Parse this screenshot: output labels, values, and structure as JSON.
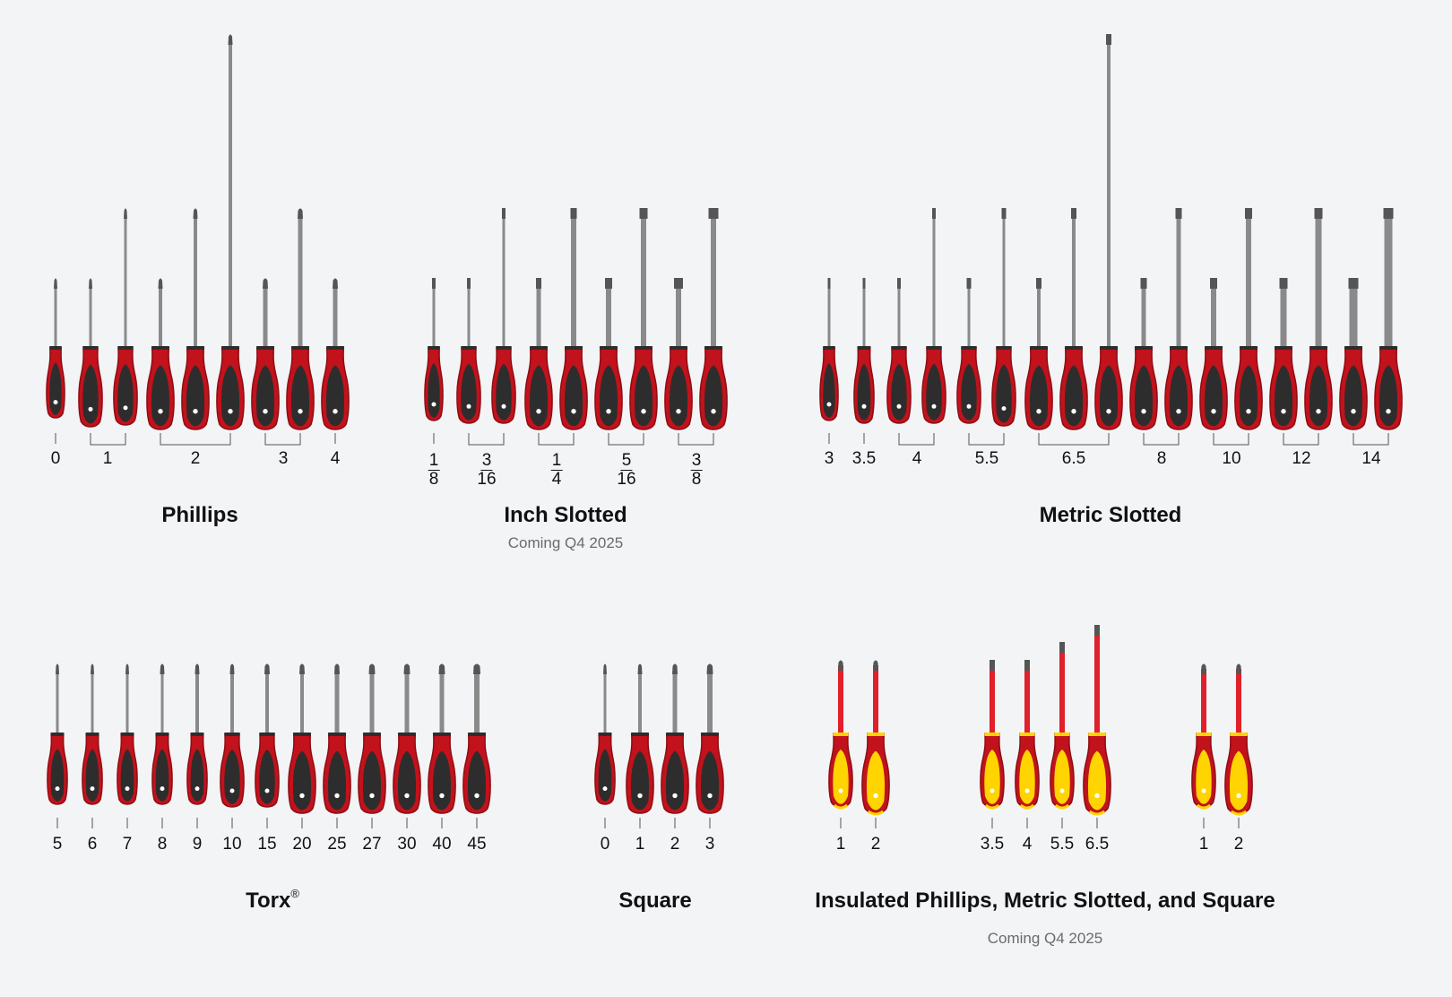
{
  "colors": {
    "background": "#f3f4f6",
    "handle_red": "#c2121c",
    "handle_dark_red": "#8e0d14",
    "grip_dark": "#2d2d2d",
    "grip_yellow": "#ffd400",
    "shaft_gray": "#8a8a8a",
    "shaft_red": "#e0202a"
  },
  "groups": [
    {
      "id": "phillips",
      "title": "Phillips",
      "subtitle": "",
      "labels": [
        "0",
        "1",
        "2",
        "3",
        "4"
      ]
    },
    {
      "id": "inch-slotted",
      "title": "Inch Slotted",
      "subtitle": "Coming Q4 2025",
      "labels": [
        {
          "num": "1",
          "den": "8"
        },
        {
          "num": "3",
          "den": "16"
        },
        {
          "num": "1",
          "den": "4"
        },
        {
          "num": "5",
          "den": "16"
        },
        {
          "num": "3",
          "den": "8"
        }
      ]
    },
    {
      "id": "metric-slotted",
      "title": "Metric Slotted",
      "subtitle": "",
      "labels": [
        "3",
        "3.5",
        "4",
        "5.5",
        "6.5",
        "8",
        "10",
        "12",
        "14"
      ]
    },
    {
      "id": "torx",
      "title": "Torx",
      "title_mark": "®",
      "subtitle": "",
      "labels": [
        "5",
        "6",
        "7",
        "8",
        "9",
        "10",
        "15",
        "20",
        "25",
        "27",
        "30",
        "40",
        "45"
      ]
    },
    {
      "id": "square",
      "title": "Square",
      "subtitle": "",
      "labels": [
        "0",
        "1",
        "2",
        "3"
      ]
    },
    {
      "id": "insulated",
      "title": "Insulated Phillips, Metric Slotted, and Square",
      "subtitle": "Coming Q4 2025",
      "labels": [
        "1",
        "2",
        "3.5",
        "4",
        "5.5",
        "6.5",
        "1",
        "2"
      ]
    }
  ]
}
